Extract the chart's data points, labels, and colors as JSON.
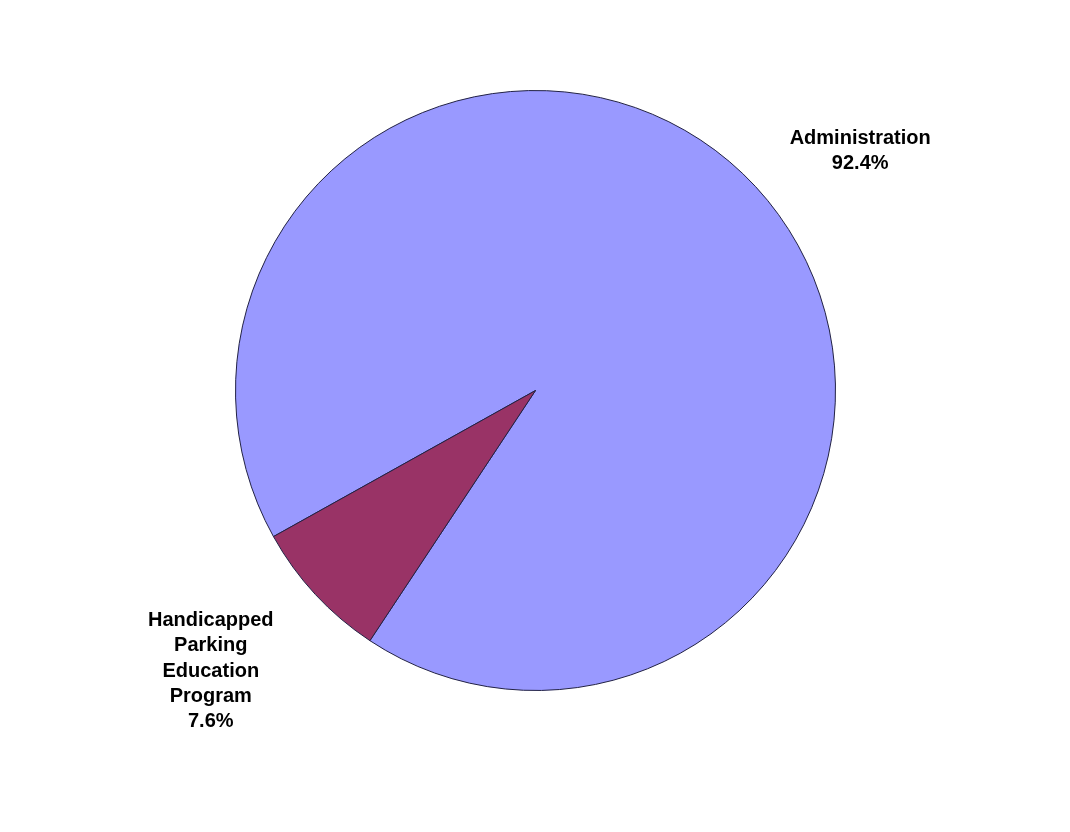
{
  "chart_data": {
    "type": "pie",
    "categories": [
      "Administration",
      "Handicapped Parking Education Program"
    ],
    "values": [
      92.4,
      7.6
    ],
    "colors": [
      "#9999ff",
      "#993366"
    ],
    "value_labels": [
      "92.4%",
      "7.6%"
    ]
  }
}
